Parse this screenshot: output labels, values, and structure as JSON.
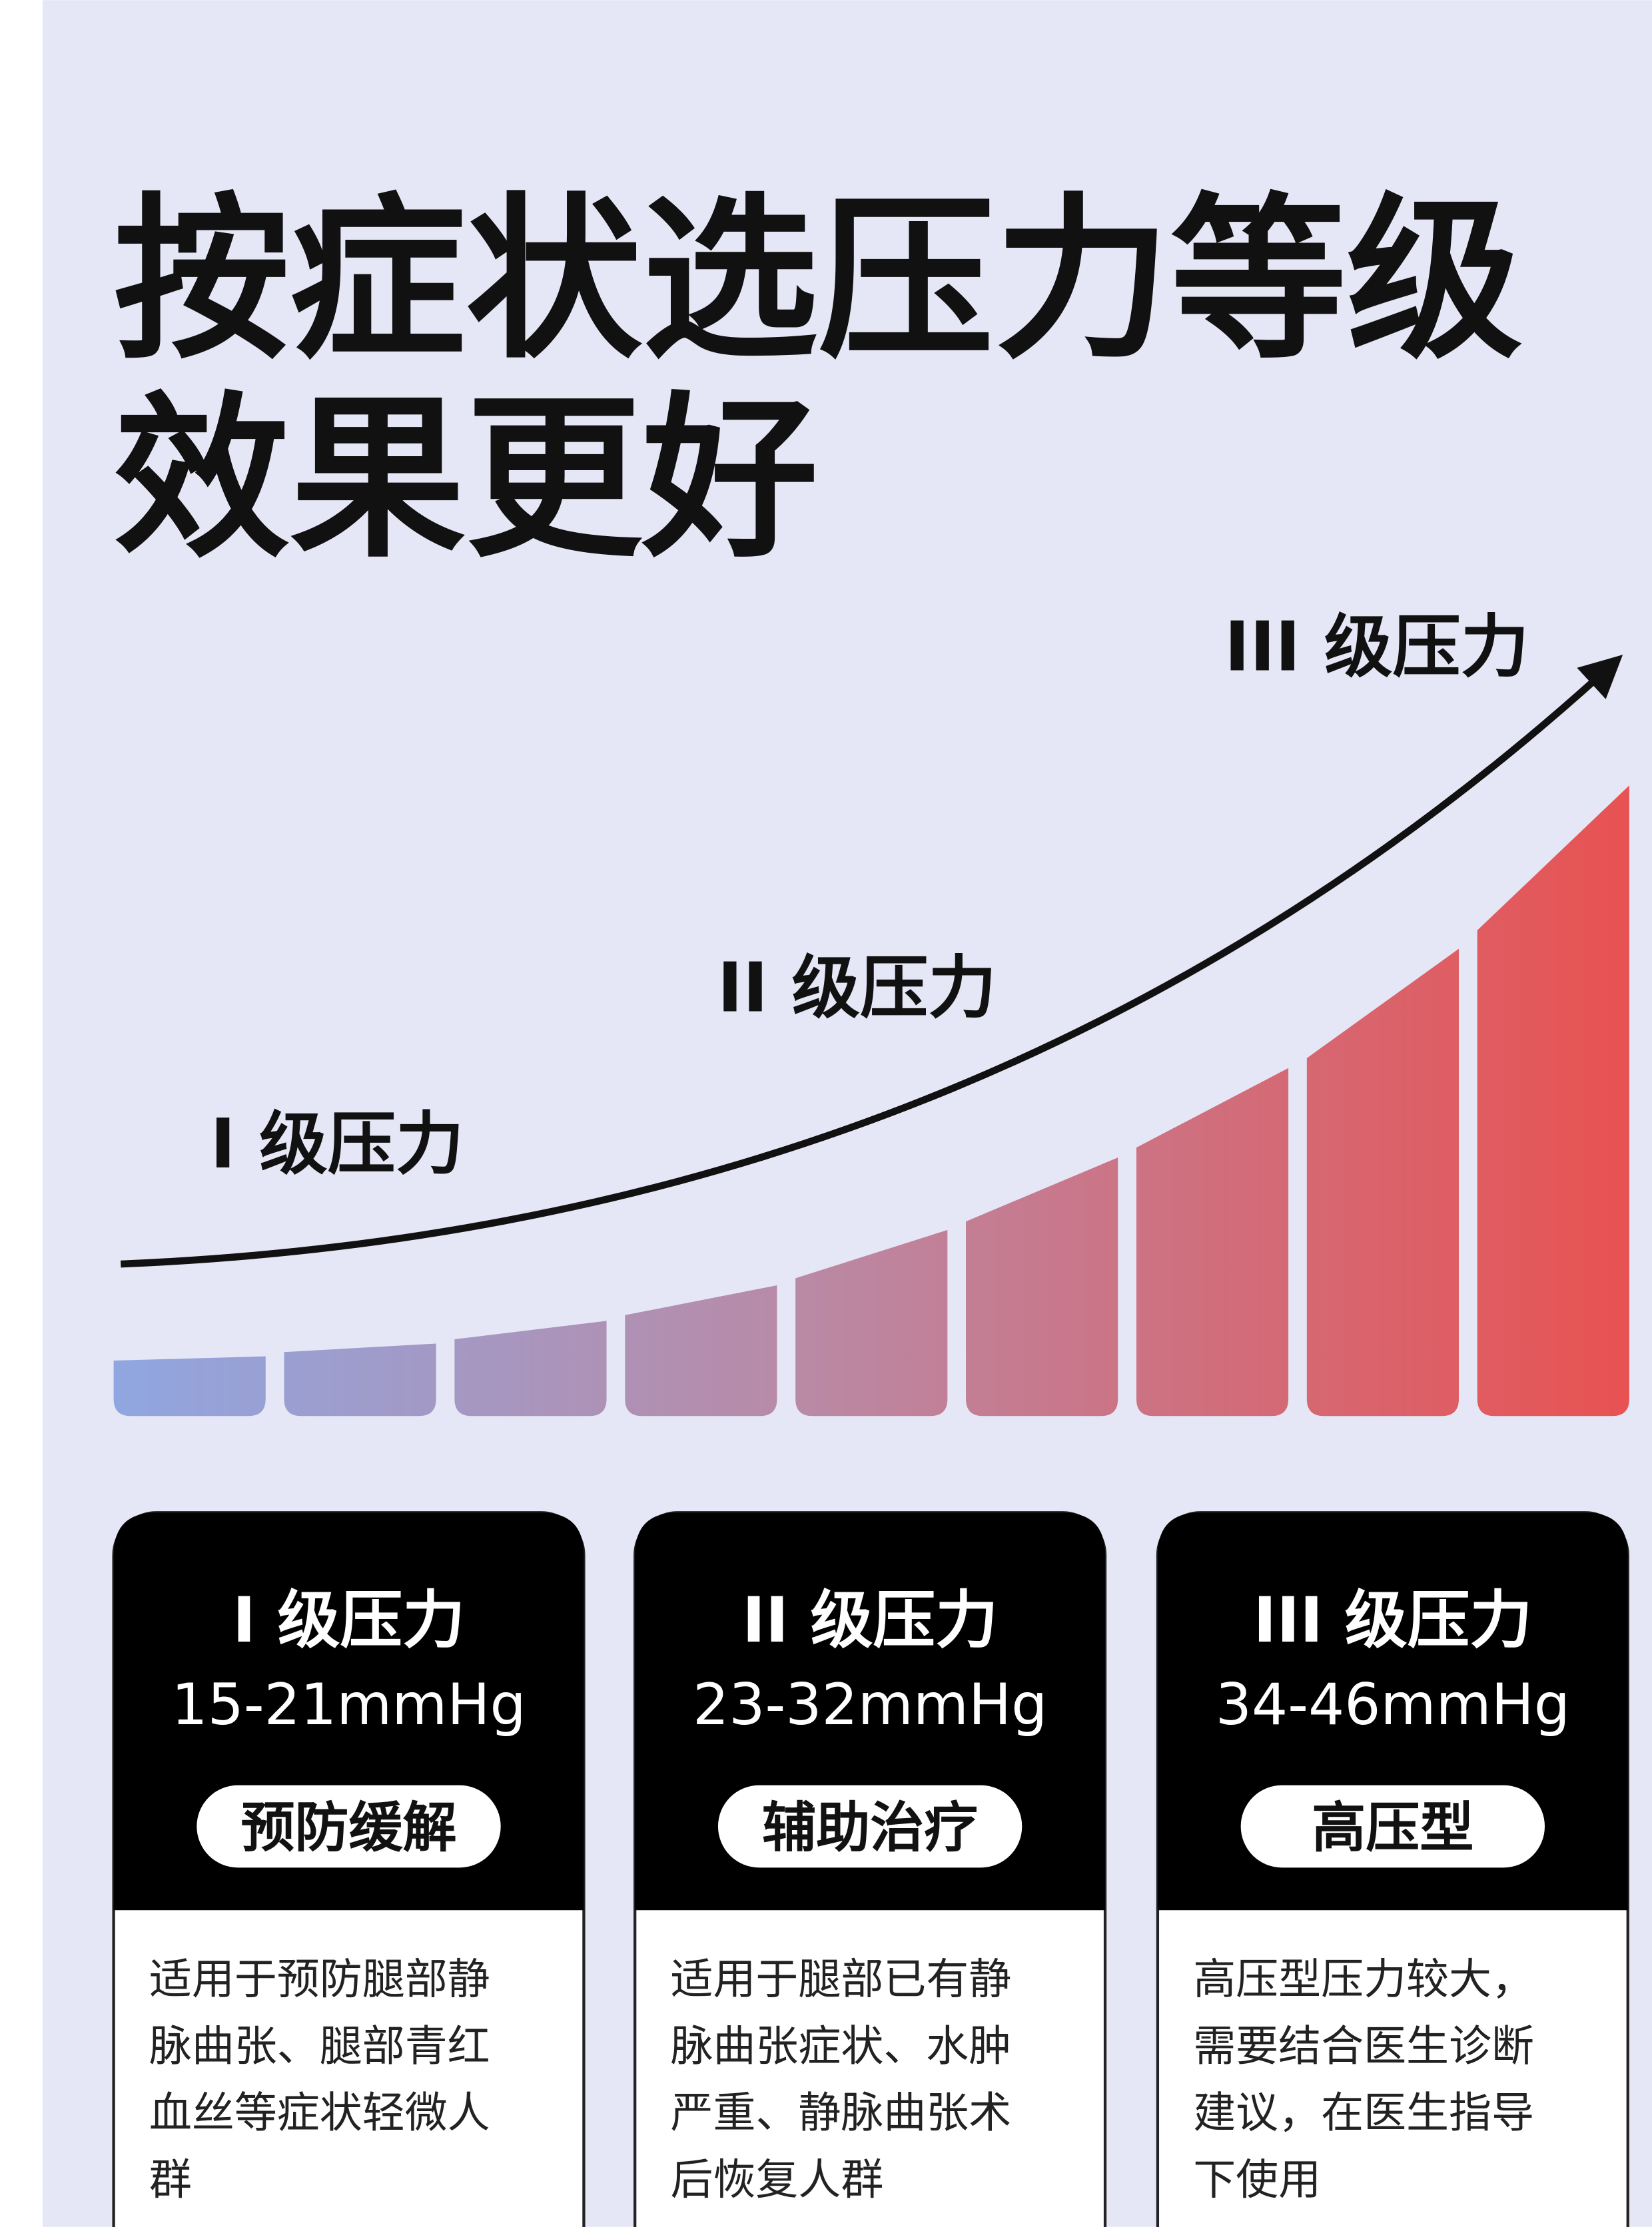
{
  "title": [
    "按症状选压力等级",
    "效果更好"
  ],
  "curve_labels": [
    "I 级压力",
    "II 级压力",
    "III 级压力"
  ],
  "cards": [
    {
      "level": "I 级压力",
      "pressure": "15-21mmHg",
      "tag": "预防缓解",
      "description": [
        "适用于预防腿部静",
        "脉曲张、腿部青红",
        "血丝等症状轻微人",
        "群"
      ]
    },
    {
      "level": "II 级压力",
      "pressure": "23-32mmHg",
      "tag": "辅助治疗",
      "description": [
        "适用于腿部已有静",
        "脉曲张症状、水肿",
        "严重、静脉曲张术",
        "后恢复人群"
      ]
    },
    {
      "level": "III 级压力",
      "pressure": "34-46mmHg",
      "tag": "高压型",
      "description": [
        "高压型压力较大，",
        "需要结合医生诊断",
        "建议，在医生指导",
        "下使用"
      ]
    }
  ]
}
